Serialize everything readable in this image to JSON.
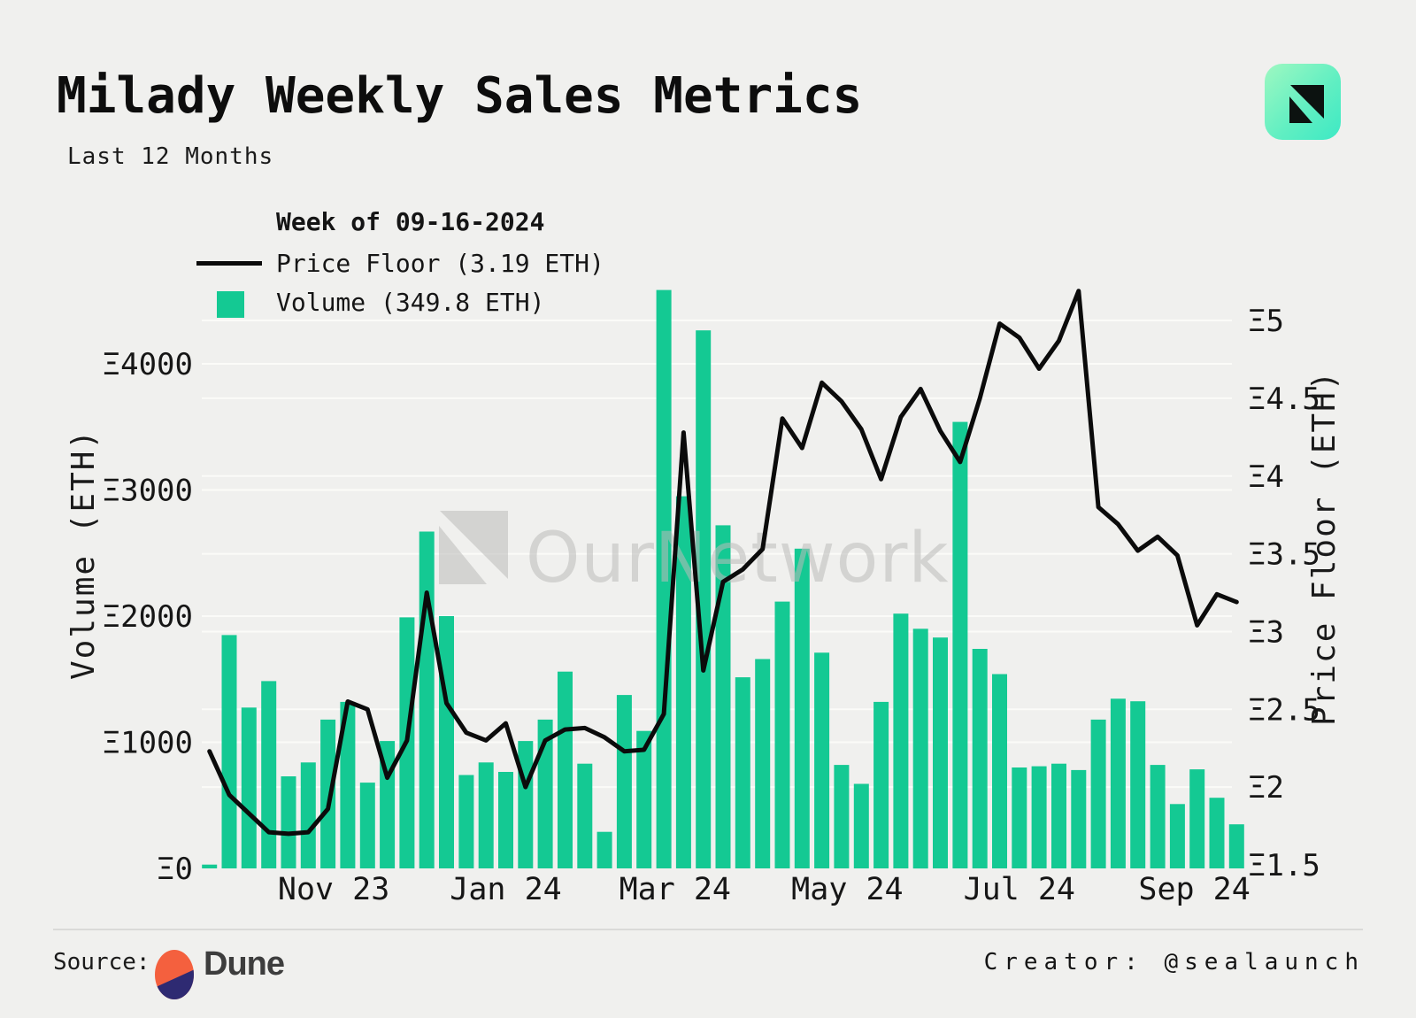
{
  "header": {
    "title": "Milady Weekly Sales Metrics",
    "subtitle": "Last 12 Months"
  },
  "legend": {
    "heading": "Week of 09-16-2024",
    "price_label": "Price Floor (3.19 ETH)",
    "volume_label": "Volume (349.8 ETH)"
  },
  "watermark": {
    "text": "OurNetwork"
  },
  "axes": {
    "left_axis": {
      "title": "Volume (ETH)",
      "ticks": [
        {
          "label": "Ξ0",
          "value": 0
        },
        {
          "label": "Ξ1000",
          "value": 1000
        },
        {
          "label": "Ξ2000",
          "value": 2000
        },
        {
          "label": "Ξ3000",
          "value": 3000
        },
        {
          "label": "Ξ4000",
          "value": 4000
        }
      ]
    },
    "right_axis": {
      "title": "Price Floor (ETH)",
      "ticks": [
        {
          "label": "Ξ1.5",
          "value": 1.5
        },
        {
          "label": "Ξ2",
          "value": 2
        },
        {
          "label": "Ξ2.5",
          "value": 2.5
        },
        {
          "label": "Ξ3",
          "value": 3
        },
        {
          "label": "Ξ3.5",
          "value": 3.5
        },
        {
          "label": "Ξ4",
          "value": 4
        },
        {
          "label": "Ξ4.5",
          "value": 4.5
        },
        {
          "label": "Ξ5",
          "value": 5
        }
      ]
    },
    "x_axis": {
      "ticks": [
        {
          "label": "Nov 23",
          "week_index": 6.29
        },
        {
          "label": "Jan 24",
          "week_index": 15.0
        },
        {
          "label": "Mar 24",
          "week_index": 23.57
        },
        {
          "label": "May 24",
          "week_index": 32.29
        },
        {
          "label": "Jul 24",
          "week_index": 41.0
        },
        {
          "label": "Sep 24",
          "week_index": 49.86
        }
      ]
    }
  },
  "chart_data": {
    "type": "bar+line",
    "title": "Milady Weekly Sales Metrics",
    "subtitle": "Last 12 Months",
    "x_unit": "week",
    "weeks": 53,
    "first_week_start": "2023-09-18",
    "last_week_start": "2024-09-16",
    "selected_week": "09-16-2024",
    "left_ylabel": "Volume (ETH)",
    "right_ylabel": "Price Floor (ETH)",
    "left_ylim": [
      0,
      4600
    ],
    "right_ylim": [
      1.5,
      5.25
    ],
    "grid": true,
    "legend_position": "top-left",
    "series": [
      {
        "name": "Volume (ETH)",
        "type": "bar",
        "axis": "left",
        "values": [
          30,
          1850,
          1275,
          1485,
          730,
          840,
          1180,
          1320,
          680,
          1010,
          1990,
          2670,
          2000,
          740,
          840,
          765,
          1010,
          1180,
          1560,
          830,
          290,
          1375,
          1090,
          4585,
          2950,
          4265,
          2720,
          1515,
          1660,
          2115,
          2535,
          1710,
          820,
          670,
          1320,
          2020,
          1900,
          1830,
          3540,
          1740,
          1540,
          800,
          810,
          830,
          780,
          1180,
          1345,
          1325,
          820,
          510,
          785,
          560,
          349.8
        ]
      },
      {
        "name": "Price Floor (ETH)",
        "type": "line",
        "axis": "right",
        "values": [
          2.23,
          1.95,
          1.83,
          1.71,
          1.7,
          1.71,
          1.86,
          2.55,
          2.5,
          2.06,
          2.3,
          3.25,
          2.54,
          2.35,
          2.3,
          2.41,
          2.0,
          2.3,
          2.37,
          2.38,
          2.32,
          2.23,
          2.24,
          2.47,
          4.28,
          2.75,
          3.32,
          3.4,
          3.53,
          4.37,
          4.18,
          4.6,
          4.48,
          4.3,
          3.98,
          4.38,
          4.56,
          4.29,
          4.09,
          4.5,
          4.98,
          4.89,
          4.69,
          4.87,
          5.19,
          3.8,
          3.69,
          3.52,
          3.61,
          3.49,
          3.04,
          3.24,
          3.19
        ]
      }
    ]
  },
  "footer": {
    "source_label": "Source:",
    "source_name": "Dune",
    "creator_label": "Creator:",
    "creator_handle": "@sealaunch"
  },
  "colors": {
    "background": "#f0f0ee",
    "bar": "#14c993",
    "line": "#0b0b0b",
    "grid": "#fbfbf8",
    "text": "#161616",
    "watermark": "#bcbcba",
    "logo_gradient_start": "#9ef8c1",
    "logo_gradient_end": "#3de9c4",
    "dune_orange": "#f4603e",
    "dune_navy": "#2e2a72",
    "divider": "#dadad8"
  }
}
